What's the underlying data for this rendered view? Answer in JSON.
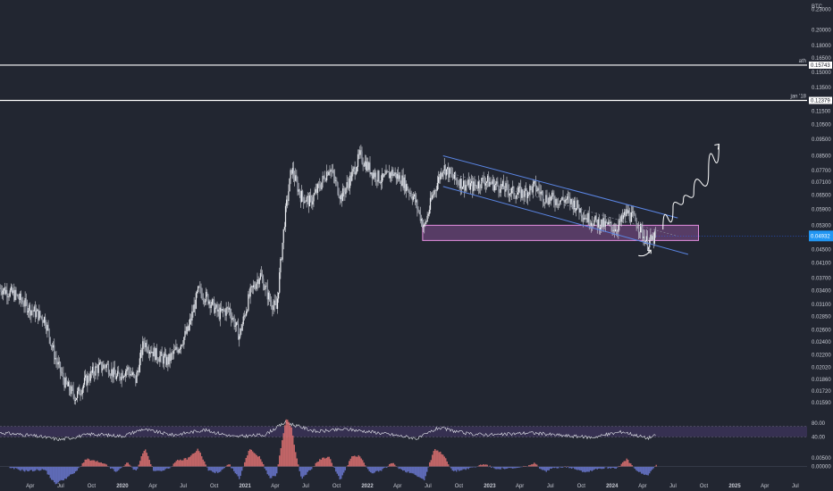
{
  "chart_data": {
    "type": "candlestick",
    "symbol_label": "BTC",
    "y_scale": "log",
    "ylim": [
      0.0145,
      0.245
    ],
    "price_ticks": [
      "0.23000",
      "0.20000",
      "0.18000",
      "0.16500",
      "0.15000",
      "0.13500",
      "0.11500",
      "0.10500",
      "0.09500",
      "0.08500",
      "0.07700",
      "0.07100",
      "0.06500",
      "0.05900",
      "0.05300",
      "0.04500",
      "0.04100",
      "0.03700",
      "0.03400",
      "0.03100",
      "0.02850",
      "0.02600",
      "0.02400",
      "0.02200",
      "0.02020",
      "0.01860",
      "0.01720",
      "0.01590"
    ],
    "time_labels": [
      "Apr",
      "Jul",
      "Oct",
      "2020",
      "Apr",
      "Jul",
      "Oct",
      "2021",
      "Apr",
      "Jul",
      "Oct",
      "2022",
      "Apr",
      "Jul",
      "Oct",
      "2023",
      "Apr",
      "Jul",
      "Oct",
      "2024",
      "Apr",
      "Jul",
      "Oct",
      "2025",
      "Apr",
      "Jul"
    ],
    "key_levels": [
      {
        "label": "ath",
        "value": "0.15743",
        "price": 0.1574
      },
      {
        "label": "jan '18",
        "value": "0.12379",
        "price": 0.1238
      }
    ],
    "current_price_tag": "0.04932",
    "current_price": 0.0493,
    "support_zone": {
      "from_date": "2022-06-15",
      "to_date": "2024-09-15",
      "low": 0.0478,
      "high": 0.053
    },
    "channel_upper": [
      {
        "date": "2022-08-15",
        "price": 0.085
      },
      {
        "date": "2024-07-15",
        "price": 0.0557
      }
    ],
    "channel_lower": [
      {
        "date": "2022-08-15",
        "price": 0.069
      },
      {
        "date": "2024-08-15",
        "price": 0.0435
      }
    ],
    "projection_path": [
      {
        "date": "2024-06-01",
        "price": 0.0515
      },
      {
        "date": "2024-07-01",
        "price": 0.06
      },
      {
        "date": "2024-08-01",
        "price": 0.063
      },
      {
        "date": "2024-09-01",
        "price": 0.066
      },
      {
        "date": "2024-10-15",
        "price": 0.076
      },
      {
        "date": "2024-11-15",
        "price": 0.092
      }
    ],
    "close_series": [
      {
        "date": "2019-01-01",
        "price": 0.0346
      },
      {
        "date": "2019-02-15",
        "price": 0.033
      },
      {
        "date": "2019-04-01",
        "price": 0.03
      },
      {
        "date": "2019-05-15",
        "price": 0.028
      },
      {
        "date": "2019-06-15",
        "price": 0.0215
      },
      {
        "date": "2019-07-15",
        "price": 0.018
      },
      {
        "date": "2019-08-15",
        "price": 0.0165
      },
      {
        "date": "2019-09-15",
        "price": 0.0185
      },
      {
        "date": "2019-10-15",
        "price": 0.02
      },
      {
        "date": "2019-11-15",
        "price": 0.0205
      },
      {
        "date": "2019-12-15",
        "price": 0.0188
      },
      {
        "date": "2020-01-15",
        "price": 0.02
      },
      {
        "date": "2020-02-10",
        "price": 0.0185
      },
      {
        "date": "2020-03-05",
        "price": 0.024
      },
      {
        "date": "2020-04-10",
        "price": 0.022
      },
      {
        "date": "2020-05-15",
        "price": 0.021
      },
      {
        "date": "2020-06-15",
        "price": 0.023
      },
      {
        "date": "2020-07-15",
        "price": 0.026
      },
      {
        "date": "2020-08-15",
        "price": 0.034
      },
      {
        "date": "2020-09-15",
        "price": 0.032
      },
      {
        "date": "2020-10-15",
        "price": 0.029
      },
      {
        "date": "2020-11-15",
        "price": 0.03
      },
      {
        "date": "2020-12-15",
        "price": 0.025
      },
      {
        "date": "2021-01-15",
        "price": 0.033
      },
      {
        "date": "2021-02-15",
        "price": 0.038
      },
      {
        "date": "2021-03-15",
        "price": 0.032
      },
      {
        "date": "2021-04-05",
        "price": 0.03
      },
      {
        "date": "2021-04-30",
        "price": 0.056
      },
      {
        "date": "2021-05-20",
        "price": 0.078
      },
      {
        "date": "2021-06-15",
        "price": 0.065
      },
      {
        "date": "2021-07-15",
        "price": 0.062
      },
      {
        "date": "2021-08-15",
        "price": 0.07
      },
      {
        "date": "2021-09-10",
        "price": 0.079
      },
      {
        "date": "2021-10-15",
        "price": 0.064
      },
      {
        "date": "2021-11-15",
        "price": 0.074
      },
      {
        "date": "2021-12-10",
        "price": 0.085
      },
      {
        "date": "2022-01-15",
        "price": 0.076
      },
      {
        "date": "2022-02-15",
        "price": 0.072
      },
      {
        "date": "2022-03-15",
        "price": 0.076
      },
      {
        "date": "2022-04-15",
        "price": 0.072
      },
      {
        "date": "2022-05-20",
        "price": 0.064
      },
      {
        "date": "2022-06-20",
        "price": 0.052
      },
      {
        "date": "2022-07-15",
        "price": 0.065
      },
      {
        "date": "2022-08-15",
        "price": 0.079
      },
      {
        "date": "2022-09-15",
        "price": 0.073
      },
      {
        "date": "2022-10-15",
        "price": 0.07
      },
      {
        "date": "2022-11-15",
        "price": 0.069
      },
      {
        "date": "2022-12-15",
        "price": 0.072
      },
      {
        "date": "2023-01-15",
        "price": 0.07
      },
      {
        "date": "2023-02-15",
        "price": 0.068
      },
      {
        "date": "2023-03-15",
        "price": 0.066
      },
      {
        "date": "2023-04-15",
        "price": 0.066
      },
      {
        "date": "2023-05-15",
        "price": 0.069
      },
      {
        "date": "2023-06-15",
        "price": 0.064
      },
      {
        "date": "2023-07-15",
        "price": 0.063
      },
      {
        "date": "2023-08-15",
        "price": 0.063
      },
      {
        "date": "2023-09-15",
        "price": 0.061
      },
      {
        "date": "2023-10-15",
        "price": 0.056
      },
      {
        "date": "2023-11-15",
        "price": 0.054
      },
      {
        "date": "2023-12-15",
        "price": 0.053
      },
      {
        "date": "2024-01-15",
        "price": 0.052
      },
      {
        "date": "2024-02-15",
        "price": 0.058
      },
      {
        "date": "2024-03-15",
        "price": 0.054
      },
      {
        "date": "2024-04-15",
        "price": 0.047
      },
      {
        "date": "2024-05-01",
        "price": 0.048
      },
      {
        "date": "2024-05-12",
        "price": 0.0493
      }
    ],
    "rsi": {
      "ticks": [
        "80.00",
        "40.00"
      ],
      "ylim": [
        20,
        95
      ],
      "band": [
        40,
        70
      ],
      "series": [
        {
          "date": "2019-01-01",
          "value": 52
        },
        {
          "date": "2019-04-01",
          "value": 44
        },
        {
          "date": "2019-07-01",
          "value": 32
        },
        {
          "date": "2019-10-01",
          "value": 48
        },
        {
          "date": "2020-01-01",
          "value": 42
        },
        {
          "date": "2020-03-01",
          "value": 62
        },
        {
          "date": "2020-06-01",
          "value": 45
        },
        {
          "date": "2020-09-01",
          "value": 60
        },
        {
          "date": "2020-12-01",
          "value": 40
        },
        {
          "date": "2021-03-01",
          "value": 46
        },
        {
          "date": "2021-05-01",
          "value": 82
        },
        {
          "date": "2021-08-01",
          "value": 55
        },
        {
          "date": "2021-11-01",
          "value": 62
        },
        {
          "date": "2022-02-01",
          "value": 52
        },
        {
          "date": "2022-06-01",
          "value": 35
        },
        {
          "date": "2022-08-01",
          "value": 66
        },
        {
          "date": "2022-11-01",
          "value": 48
        },
        {
          "date": "2023-02-01",
          "value": 46
        },
        {
          "date": "2023-05-01",
          "value": 52
        },
        {
          "date": "2023-08-01",
          "value": 44
        },
        {
          "date": "2023-11-01",
          "value": 38
        },
        {
          "date": "2024-02-01",
          "value": 55
        },
        {
          "date": "2024-04-15",
          "value": 36
        },
        {
          "date": "2024-05-12",
          "value": 44
        }
      ]
    },
    "histogram": {
      "ticks": [
        "0.00000",
        "0.00500"
      ],
      "ylim": [
        -0.006,
        0.012
      ]
    }
  }
}
